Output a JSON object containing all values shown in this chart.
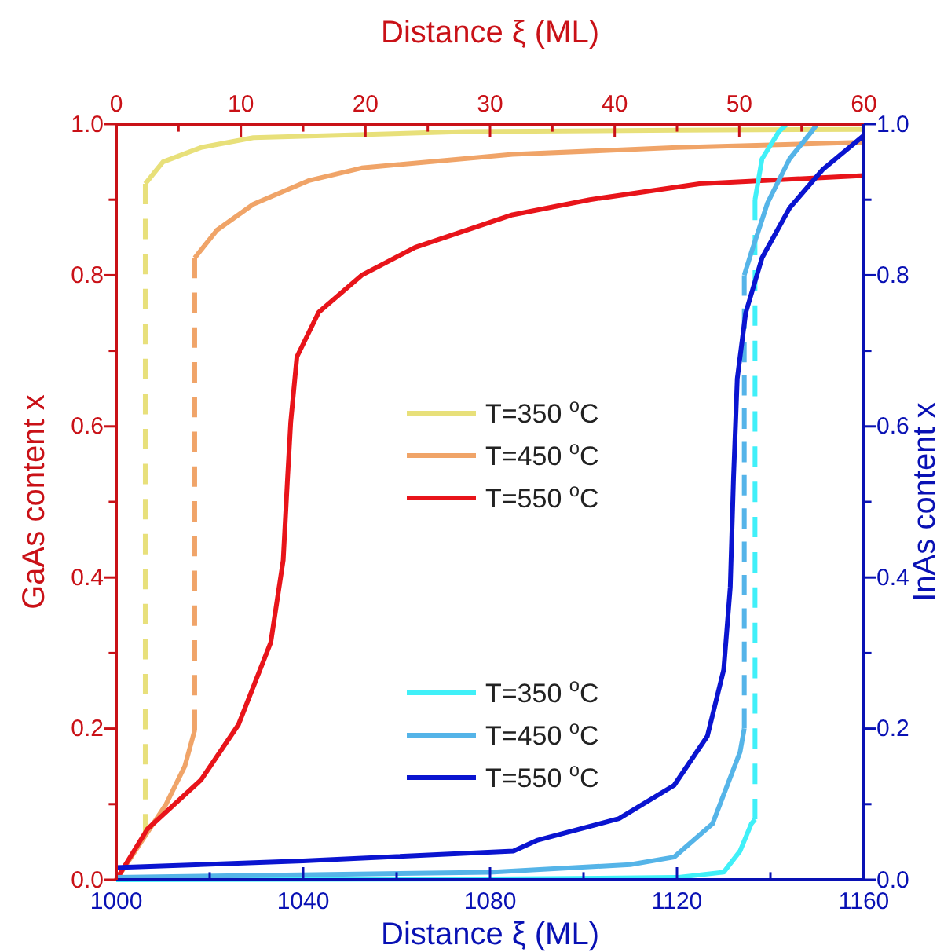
{
  "chart_data": {
    "type": "line",
    "xlabel": "Distance ξ (ML)",
    "x2label": "Distance ξ (ML)",
    "ylabel": "GaAs content x",
    "y2label": "InAs content x",
    "xlim": [
      1000,
      1160
    ],
    "xticks": [
      1000,
      {
        "value": 1020,
        "label": null
      },
      1040,
      {
        "value": 1060,
        "label": null
      },
      1080,
      {
        "value": 1100,
        "label": null
      },
      1120,
      {
        "value": 1140,
        "label": null
      },
      1160
    ],
    "x2lim": [
      0,
      60
    ],
    "x2ticks": [
      0,
      {
        "value": 5,
        "label": null
      },
      10,
      {
        "value": 15,
        "label": null
      },
      20,
      {
        "value": 25,
        "label": null
      },
      30,
      {
        "value": 35,
        "label": null
      },
      40,
      {
        "value": 45,
        "label": null
      },
      50,
      {
        "value": 55,
        "label": null
      },
      60
    ],
    "ylim": [
      0,
      1
    ],
    "yticks": [
      {
        "value": 0,
        "label": "0.0"
      },
      {
        "value": 0.1,
        "label": null
      },
      0.2,
      {
        "value": 0.3,
        "label": null
      },
      0.4,
      {
        "value": 0.5,
        "label": null
      },
      0.6,
      {
        "value": 0.7,
        "label": null
      },
      0.8,
      {
        "value": 0.9,
        "label": null
      },
      {
        "value": 1,
        "label": "1.0"
      }
    ],
    "y2lim": [
      0,
      1
    ],
    "y2ticks": [
      {
        "value": 0,
        "label": "0.0"
      },
      {
        "value": 0.1,
        "label": null
      },
      0.2,
      {
        "value": 0.3,
        "label": null
      },
      0.4,
      {
        "value": 0.5,
        "label": null
      },
      0.6,
      {
        "value": 0.7,
        "label": null
      },
      0.8,
      {
        "value": 0.9,
        "label": null
      },
      {
        "value": 1,
        "label": "1.0"
      }
    ],
    "grid": false,
    "legend": "right",
    "marker": "none",
    "line_style": "solid",
    "series": [
      {
        "name": "T=350 $^{o}$C",
        "color": "#e8e07a",
        "axis": "x2",
        "x": [
          0,
          2.33,
          null,
          2.33,
          3.75,
          6.8,
          11,
          28,
          45,
          60
        ],
        "values": [
          0,
          0.06,
          null,
          0.921,
          0.95,
          0.969,
          0.982,
          0.99,
          0.992,
          0.993
        ]
      },
      {
        "color": "#e8e07b",
        "axis": "x2",
        "line_style": "dashed",
        "x": [
          2.33,
          2.33
        ],
        "values": [
          0.06,
          0.921
        ]
      },
      {
        "name": "T=450 $^{o}$C",
        "color": "#f0a468",
        "axis": "x2",
        "x": [
          0,
          2,
          4,
          5.5,
          6.3,
          null,
          6.3,
          8.1,
          11,
          15.4,
          19.7,
          31.8,
          45,
          60
        ],
        "values": [
          0,
          0.05,
          0.1,
          0.15,
          0.198,
          null,
          0.823,
          0.86,
          0.894,
          0.925,
          0.942,
          0.96,
          0.969,
          0.976
        ]
      },
      {
        "color": "#f0a469",
        "axis": "x2",
        "line_style": "dashed",
        "x": [
          6.3,
          6.3
        ],
        "values": [
          0.198,
          0.823
        ]
      },
      {
        "name": "T=550 $^{o}$C",
        "color": "#e8141a",
        "axis": "x2",
        "x": [
          0,
          2.5,
          6.8,
          9.8,
          12.4,
          13.4,
          13.75,
          14,
          14.5,
          16.25,
          19.7,
          24,
          31.8,
          38,
          46.8,
          60
        ],
        "values": [
          0,
          0.067,
          0.132,
          0.205,
          0.314,
          0.423,
          0.532,
          0.605,
          0.692,
          0.751,
          0.8,
          0.837,
          0.88,
          0.9,
          0.921,
          0.932
        ]
      },
      {
        "name": "T=350 $^{o}$C",
        "color": "#40f0f8",
        "axis": "y2",
        "x": [
          1000,
          1080,
          1120,
          1130,
          1133.5,
          1135.9,
          1136.7,
          null,
          1136.7,
          1138.2,
          1141.8,
          1143.5
        ],
        "values": [
          0,
          0.001,
          0.003,
          0.01,
          0.038,
          0.074,
          0.08,
          null,
          0.9,
          0.954,
          0.99,
          1
        ]
      },
      {
        "color": "#40f0f9",
        "axis": "y2",
        "line_style": "dashed",
        "x": [
          1136.7,
          1136.7
        ],
        "values": [
          0.08,
          0.9
        ]
      },
      {
        "name": "T=450 $^{o}$C",
        "color": "#55b4e8",
        "axis": "y2",
        "x": [
          1000,
          1080,
          1110,
          1119.4,
          1127.6,
          1133.5,
          1134.4,
          null,
          1134.4,
          1135.9,
          1139.4,
          1144.1,
          1148.8,
          1150
        ],
        "values": [
          0.003,
          0.01,
          0.02,
          0.03,
          0.074,
          0.169,
          0.2,
          null,
          0.8,
          0.83,
          0.896,
          0.954,
          0.99,
          1
        ]
      },
      {
        "color": "#55b4e9",
        "axis": "y2",
        "line_style": "dashed",
        "x": [
          1134.4,
          1134.4
        ],
        "values": [
          0.2,
          0.8
        ]
      },
      {
        "name": "T=550 $^{o}$C",
        "color": "#0a14d0",
        "axis": "y2",
        "x": [
          1000,
          1040,
          1085,
          1090,
          1107.6,
          1119.4,
          1126.5,
          1130,
          1131.4,
          1132.1,
          1132.9,
          1134.7,
          1138.2,
          1144.1,
          1151.2,
          1160
        ],
        "values": [
          0.016,
          0.025,
          0.038,
          0.052,
          0.081,
          0.125,
          0.19,
          0.278,
          0.387,
          0.532,
          0.663,
          0.75,
          0.823,
          0.889,
          0.94,
          0.985
        ]
      }
    ]
  }
}
